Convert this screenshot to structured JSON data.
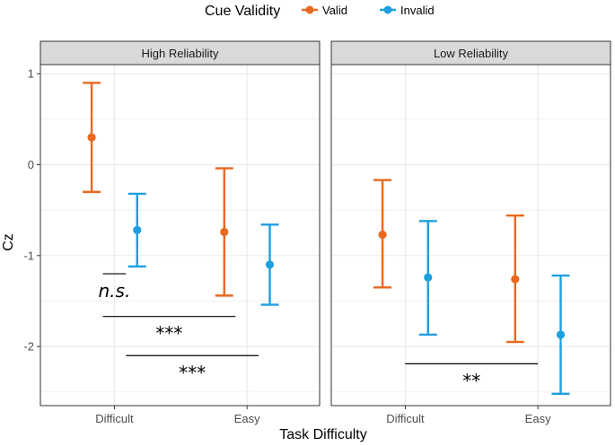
{
  "chart_data": {
    "type": "errorbar-point",
    "legend": {
      "title": "Cue Validity",
      "entries": [
        {
          "key": "valid",
          "label": "Valid",
          "color": "#e8691f"
        },
        {
          "key": "invalid",
          "label": "Invalid",
          "color": "#1f9fe0"
        }
      ],
      "position": "top"
    },
    "xlabel": "Task Difficulty",
    "ylabel": "Cz",
    "categories": [
      "Difficult",
      "Easy"
    ],
    "ylim": [
      -2.65,
      1.1
    ],
    "yticks": [
      1,
      0,
      -1,
      -2
    ],
    "ytick_labels": [
      "1",
      "0",
      "-1",
      "-2"
    ],
    "panels": [
      {
        "key": "high",
        "title": "High Reliability",
        "points": [
          {
            "category": "Difficult",
            "series": "valid",
            "mean": 0.3,
            "lower": -0.3,
            "upper": 0.9
          },
          {
            "category": "Difficult",
            "series": "invalid",
            "mean": -0.72,
            "lower": -1.12,
            "upper": -0.32
          },
          {
            "category": "Easy",
            "series": "valid",
            "mean": -0.74,
            "lower": -1.44,
            "upper": -0.04
          },
          {
            "category": "Easy",
            "series": "invalid",
            "mean": -1.1,
            "lower": -1.54,
            "upper": -0.66
          }
        ],
        "significance": [
          {
            "label": "n.s.",
            "italic": true,
            "y": -1.2,
            "from_category": 0,
            "from_offset": -0.2,
            "to_category": 0,
            "to_offset": 0.2
          },
          {
            "label": "***",
            "italic": false,
            "y": -1.67,
            "from_category": 0,
            "from_offset": -0.2,
            "to_category": 1,
            "to_offset": -0.2
          },
          {
            "label": "***",
            "italic": false,
            "y": -2.1,
            "from_category": 0,
            "from_offset": 0.2,
            "to_category": 1,
            "to_offset": 0.2
          }
        ]
      },
      {
        "key": "low",
        "title": "Low Reliability",
        "points": [
          {
            "category": "Difficult",
            "series": "valid",
            "mean": -0.77,
            "lower": -1.35,
            "upper": -0.17
          },
          {
            "category": "Difficult",
            "series": "invalid",
            "mean": -1.24,
            "lower": -1.87,
            "upper": -0.62
          },
          {
            "category": "Easy",
            "series": "valid",
            "mean": -1.26,
            "lower": -1.95,
            "upper": -0.56
          },
          {
            "category": "Easy",
            "series": "invalid",
            "mean": -1.87,
            "lower": -2.52,
            "upper": -1.22
          }
        ],
        "significance": [
          {
            "label": "**",
            "italic": false,
            "y": -2.19,
            "from_category": 0,
            "from_offset": 0,
            "to_category": 1,
            "to_offset": 0
          }
        ]
      }
    ]
  }
}
